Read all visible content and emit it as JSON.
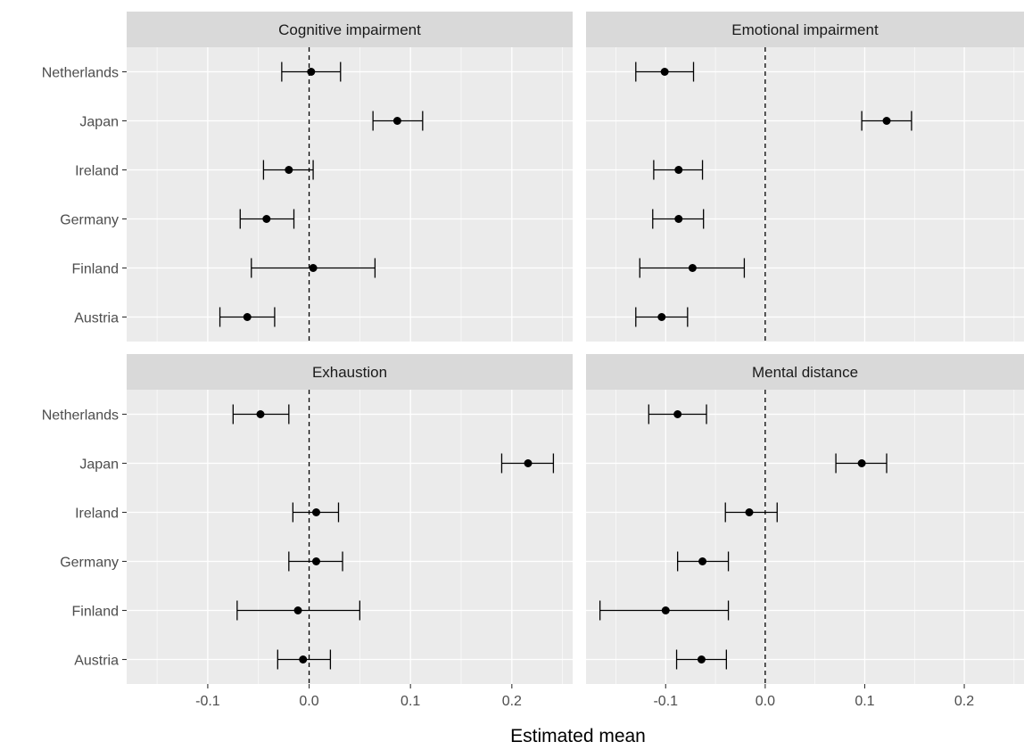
{
  "chart_data": {
    "type": "errorbar",
    "xlabel": "Estimated mean",
    "ylabel": "",
    "xlim": [
      -0.18,
      0.26
    ],
    "xticks": [
      -0.1,
      0.0,
      0.1,
      0.2
    ],
    "xtick_labels": [
      "-0.1",
      "0.0",
      "0.1",
      "0.2"
    ],
    "categories": [
      "Netherlands",
      "Japan",
      "Ireland",
      "Germany",
      "Finland",
      "Austria"
    ],
    "reference_line_x": 0,
    "grid": true,
    "colors": {
      "panel_bg": "#ebebeb",
      "strip_bg": "#d9d9d9",
      "grid": "#ffffff",
      "marks": "#000000"
    },
    "panels": [
      {
        "title": "Cognitive impairment",
        "points": [
          {
            "category": "Netherlands",
            "x": 0.002,
            "low": -0.027,
            "high": 0.031
          },
          {
            "category": "Japan",
            "x": 0.087,
            "low": 0.063,
            "high": 0.112
          },
          {
            "category": "Ireland",
            "x": -0.02,
            "low": -0.045,
            "high": 0.004
          },
          {
            "category": "Germany",
            "x": -0.042,
            "low": -0.068,
            "high": -0.015
          },
          {
            "category": "Finland",
            "x": 0.004,
            "low": -0.057,
            "high": 0.065
          },
          {
            "category": "Austria",
            "x": -0.061,
            "low": -0.088,
            "high": -0.034
          }
        ]
      },
      {
        "title": "Emotional impairment",
        "points": [
          {
            "category": "Netherlands",
            "x": -0.101,
            "low": -0.13,
            "high": -0.072
          },
          {
            "category": "Japan",
            "x": 0.122,
            "low": 0.097,
            "high": 0.147
          },
          {
            "category": "Ireland",
            "x": -0.087,
            "low": -0.112,
            "high": -0.063
          },
          {
            "category": "Germany",
            "x": -0.087,
            "low": -0.113,
            "high": -0.062
          },
          {
            "category": "Finland",
            "x": -0.073,
            "low": -0.126,
            "high": -0.021
          },
          {
            "category": "Austria",
            "x": -0.104,
            "low": -0.13,
            "high": -0.078
          }
        ]
      },
      {
        "title": "Exhaustion",
        "points": [
          {
            "category": "Netherlands",
            "x": -0.048,
            "low": -0.075,
            "high": -0.02
          },
          {
            "category": "Japan",
            "x": 0.216,
            "low": 0.19,
            "high": 0.241
          },
          {
            "category": "Ireland",
            "x": 0.007,
            "low": -0.016,
            "high": 0.029
          },
          {
            "category": "Germany",
            "x": 0.007,
            "low": -0.02,
            "high": 0.033
          },
          {
            "category": "Finland",
            "x": -0.011,
            "low": -0.071,
            "high": 0.05
          },
          {
            "category": "Austria",
            "x": -0.006,
            "low": -0.031,
            "high": 0.021
          }
        ]
      },
      {
        "title": "Mental distance",
        "points": [
          {
            "category": "Netherlands",
            "x": -0.088,
            "low": -0.117,
            "high": -0.059
          },
          {
            "category": "Japan",
            "x": 0.097,
            "low": 0.071,
            "high": 0.122
          },
          {
            "category": "Ireland",
            "x": -0.016,
            "low": -0.04,
            "high": 0.012
          },
          {
            "category": "Germany",
            "x": -0.063,
            "low": -0.088,
            "high": -0.037
          },
          {
            "category": "Finland",
            "x": -0.1,
            "low": -0.166,
            "high": -0.037
          },
          {
            "category": "Austria",
            "x": -0.064,
            "low": -0.089,
            "high": -0.039
          }
        ]
      }
    ]
  }
}
